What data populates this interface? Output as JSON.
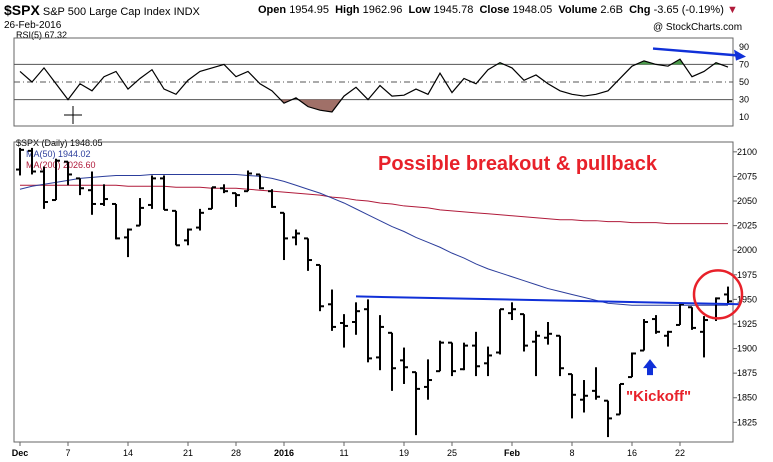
{
  "header": {
    "symbol": "$SPX",
    "name": "S&P 500 Large Cap Index",
    "exchange": "INDX",
    "date": "26-Feb-2016",
    "open_label": "Open",
    "open": "1954.95",
    "high_label": "High",
    "high": "1962.96",
    "low_label": "Low",
    "low": "1945.78",
    "close_label": "Close",
    "close": "1948.05",
    "volume_label": "Volume",
    "volume": "2.6B",
    "chg_label": "Chg",
    "chg": "-3.65 (-0.19%)",
    "copyright": "@ StockCharts.com"
  },
  "colors": {
    "price": "#000000",
    "ma50": "#2c3e9c",
    "ma200": "#b01a3a",
    "annotation": "#e8212a",
    "trendline": "#1030d8",
    "rsi_fill": "#a07068"
  },
  "chart_data": [
    {
      "type": "line",
      "title": "RSI(5) 67.32",
      "ylim": [
        0,
        100
      ],
      "yticks": [
        10,
        30,
        50,
        70,
        90
      ],
      "reference_lines": [
        30,
        50,
        70
      ],
      "x": [
        "2015-12-01",
        "2015-12-02",
        "2015-12-03",
        "2015-12-04",
        "2015-12-07",
        "2015-12-08",
        "2015-12-09",
        "2015-12-10",
        "2015-12-11",
        "2015-12-14",
        "2015-12-15",
        "2015-12-16",
        "2015-12-17",
        "2015-12-18",
        "2015-12-21",
        "2015-12-22",
        "2015-12-23",
        "2015-12-24",
        "2015-12-28",
        "2015-12-29",
        "2015-12-30",
        "2015-12-31",
        "2016-01-04",
        "2016-01-05",
        "2016-01-06",
        "2016-01-07",
        "2016-01-08",
        "2016-01-11",
        "2016-01-12",
        "2016-01-13",
        "2016-01-14",
        "2016-01-15",
        "2016-01-19",
        "2016-01-20",
        "2016-01-21",
        "2016-01-22",
        "2016-01-25",
        "2016-01-26",
        "2016-01-27",
        "2016-01-28",
        "2016-01-29",
        "2016-02-01",
        "2016-02-02",
        "2016-02-03",
        "2016-02-04",
        "2016-02-05",
        "2016-02-08",
        "2016-02-09",
        "2016-02-10",
        "2016-02-11",
        "2016-02-12",
        "2016-02-16",
        "2016-02-17",
        "2016-02-18",
        "2016-02-19",
        "2016-02-22",
        "2016-02-23",
        "2016-02-24",
        "2016-02-25",
        "2016-02-26"
      ],
      "values": [
        62,
        50,
        66,
        48,
        30,
        48,
        40,
        56,
        62,
        42,
        54,
        64,
        42,
        36,
        52,
        62,
        66,
        70,
        56,
        62,
        48,
        40,
        26,
        32,
        22,
        18,
        16,
        34,
        44,
        30,
        46,
        34,
        35,
        42,
        36,
        60,
        38,
        54,
        48,
        64,
        72,
        66,
        52,
        58,
        48,
        40,
        36,
        34,
        36,
        40,
        54,
        68,
        74,
        70,
        68,
        76,
        56,
        62,
        72,
        67
      ],
      "annotations": [
        {
          "type": "arrow",
          "from_value": 88,
          "to_value": 80
        }
      ]
    },
    {
      "type": "bar",
      "title": "$SPX (Daily) 1948.05",
      "ylim": [
        1805,
        2110
      ],
      "yticks": [
        1825,
        1850,
        1875,
        1900,
        1925,
        1950,
        1975,
        2000,
        2025,
        2050,
        2075,
        2100
      ],
      "x_tick_labels": [
        "Dec",
        "7",
        "14",
        "21",
        "28",
        "2016",
        "11",
        "19",
        "25",
        "Feb",
        "8",
        "16",
        "22"
      ],
      "x_tick_dates": [
        "2015-12-01",
        "2015-12-07",
        "2015-12-14",
        "2015-12-21",
        "2015-12-28",
        "2016-01-04",
        "2016-01-11",
        "2016-01-19",
        "2016-01-25",
        "2016-02-01",
        "2016-02-08",
        "2016-02-16",
        "2016-02-22"
      ],
      "x": [
        "2015-12-01",
        "2015-12-02",
        "2015-12-03",
        "2015-12-04",
        "2015-12-07",
        "2015-12-08",
        "2015-12-09",
        "2015-12-10",
        "2015-12-11",
        "2015-12-14",
        "2015-12-15",
        "2015-12-16",
        "2015-12-17",
        "2015-12-18",
        "2015-12-21",
        "2015-12-22",
        "2015-12-23",
        "2015-12-24",
        "2015-12-28",
        "2015-12-29",
        "2015-12-30",
        "2015-12-31",
        "2016-01-04",
        "2016-01-05",
        "2016-01-06",
        "2016-01-07",
        "2016-01-08",
        "2016-01-11",
        "2016-01-12",
        "2016-01-13",
        "2016-01-14",
        "2016-01-15",
        "2016-01-19",
        "2016-01-20",
        "2016-01-21",
        "2016-01-22",
        "2016-01-25",
        "2016-01-26",
        "2016-01-27",
        "2016-01-28",
        "2016-01-29",
        "2016-02-01",
        "2016-02-02",
        "2016-02-03",
        "2016-02-04",
        "2016-02-05",
        "2016-02-08",
        "2016-02-09",
        "2016-02-10",
        "2016-02-11",
        "2016-02-12",
        "2016-02-16",
        "2016-02-17",
        "2016-02-18",
        "2016-02-19",
        "2016-02-22",
        "2016-02-23",
        "2016-02-24",
        "2016-02-25",
        "2016-02-26"
      ],
      "series": [
        {
          "name": "$SPX",
          "ohlc": [
            [
              2082,
              2104,
              2076,
              2102
            ],
            [
              2101,
              2104,
              2077,
              2080
            ],
            [
              2080,
              2085,
              2042,
              2049
            ],
            [
              2051,
              2093,
              2051,
              2091
            ],
            [
              2090,
              2090,
              2066,
              2077
            ],
            [
              2073,
              2073,
              2056,
              2063
            ],
            [
              2061,
              2080,
              2036,
              2047
            ],
            [
              2047,
              2067,
              2045,
              2052
            ],
            [
              2047,
              2047,
              2011,
              2012
            ],
            [
              2013,
              2022,
              1993,
              2021
            ],
            [
              2025,
              2053,
              2025,
              2043
            ],
            [
              2046,
              2076,
              2042,
              2073
            ],
            [
              2073,
              2076,
              2041,
              2041
            ],
            [
              2040,
              2040,
              2005,
              2005
            ],
            [
              2010,
              2022,
              2005,
              2021
            ],
            [
              2023,
              2042,
              2020,
              2038
            ],
            [
              2042,
              2064,
              2042,
              2064
            ],
            [
              2063,
              2067,
              2058,
              2060
            ],
            [
              2058,
              2058,
              2044,
              2056
            ],
            [
              2060,
              2081,
              2060,
              2078
            ],
            [
              2077,
              2077,
              2062,
              2063
            ],
            [
              2060,
              2062,
              2043,
              2044
            ],
            [
              2038,
              2038,
              1990,
              2012
            ],
            [
              2013,
              2021,
              2005,
              2017
            ],
            [
              2012,
              2012,
              1979,
              1990
            ],
            [
              1985,
              1985,
              1938,
              1943
            ],
            [
              1945,
              1960,
              1918,
              1922
            ],
            [
              1926,
              1935,
              1901,
              1923
            ],
            [
              1927,
              1947,
              1914,
              1938
            ],
            [
              1940,
              1950,
              1886,
              1890
            ],
            [
              1891,
              1934,
              1878,
              1922
            ],
            [
              1916,
              1916,
              1857,
              1880
            ],
            [
              1888,
              1901,
              1864,
              1881
            ],
            [
              1876,
              1876,
              1812,
              1859
            ],
            [
              1861,
              1889,
              1848,
              1868
            ],
            [
              1877,
              1908,
              1877,
              1906
            ],
            [
              1906,
              1906,
              1872,
              1877
            ],
            [
              1879,
              1906,
              1878,
              1903
            ],
            [
              1903,
              1917,
              1872,
              1882
            ],
            [
              1885,
              1902,
              1872,
              1893
            ],
            [
              1896,
              1940,
              1894,
              1940
            ],
            [
              1936,
              1947,
              1929,
              1940
            ],
            [
              1935,
              1935,
              1897,
              1903
            ],
            [
              1907,
              1918,
              1872,
              1913
            ],
            [
              1911,
              1927,
              1904,
              1915
            ],
            [
              1913,
              1913,
              1872,
              1880
            ],
            [
              1874,
              1874,
              1829,
              1853
            ],
            [
              1848,
              1868,
              1835,
              1852
            ],
            [
              1857,
              1881,
              1848,
              1851
            ],
            [
              1847,
              1847,
              1810,
              1829
            ],
            [
              1833,
              1864,
              1833,
              1864
            ],
            [
              1871,
              1896,
              1871,
              1895
            ],
            [
              1898,
              1930,
              1898,
              1927
            ],
            [
              1930,
              1934,
              1915,
              1917
            ],
            [
              1913,
              1918,
              1902,
              1917
            ],
            [
              1924,
              1946,
              1924,
              1945
            ],
            [
              1942,
              1942,
              1919,
              1921
            ],
            [
              1917,
              1933,
              1891,
              1929
            ],
            [
              1931,
              1952,
              1928,
              1951
            ],
            [
              1955,
              1963,
              1946,
              1948
            ]
          ]
        },
        {
          "name": "MA(50) 1944.02",
          "values": [
            2062,
            2065,
            2067,
            2069,
            2071,
            2073,
            2074,
            2075,
            2076,
            2076,
            2076,
            2077,
            2077,
            2077,
            2077,
            2077,
            2077,
            2077,
            2077,
            2076,
            2075,
            2073,
            2070,
            2066,
            2062,
            2058,
            2053,
            2048,
            2042,
            2036,
            2030,
            2024,
            2019,
            2013,
            2008,
            2003,
            1997,
            1992,
            1986,
            1981,
            1977,
            1973,
            1969,
            1965,
            1961,
            1958,
            1955,
            1952,
            1949,
            1946,
            1945,
            1944,
            1944,
            1944,
            1944,
            1944,
            1944,
            1944,
            1944,
            1944
          ]
        },
        {
          "name": "MA(200) 2026.60",
          "values": [
            2066,
            2066,
            2066,
            2066,
            2066,
            2066,
            2066,
            2066,
            2066,
            2065,
            2065,
            2065,
            2065,
            2064,
            2064,
            2064,
            2063,
            2063,
            2063,
            2062,
            2061,
            2060,
            2059,
            2058,
            2057,
            2056,
            2054,
            2053,
            2051,
            2050,
            2048,
            2047,
            2045,
            2044,
            2043,
            2041,
            2040,
            2039,
            2038,
            2037,
            2036,
            2035,
            2034,
            2033,
            2032,
            2031,
            2031,
            2030,
            2030,
            2029,
            2029,
            2028,
            2028,
            2028,
            2027,
            2027,
            2027,
            2027,
            2027,
            2027
          ]
        }
      ],
      "trendline": {
        "from": [
          "2016-01-12",
          1953
        ],
        "to": [
          "2016-02-26",
          1945
        ]
      },
      "circle": {
        "date": "2016-02-25",
        "value": 1953
      },
      "up_arrow": {
        "date": "2016-02-17",
        "value": 1877
      },
      "annotations": [
        "Possible breakout & pullback",
        "\"Kickoff\""
      ]
    }
  ]
}
